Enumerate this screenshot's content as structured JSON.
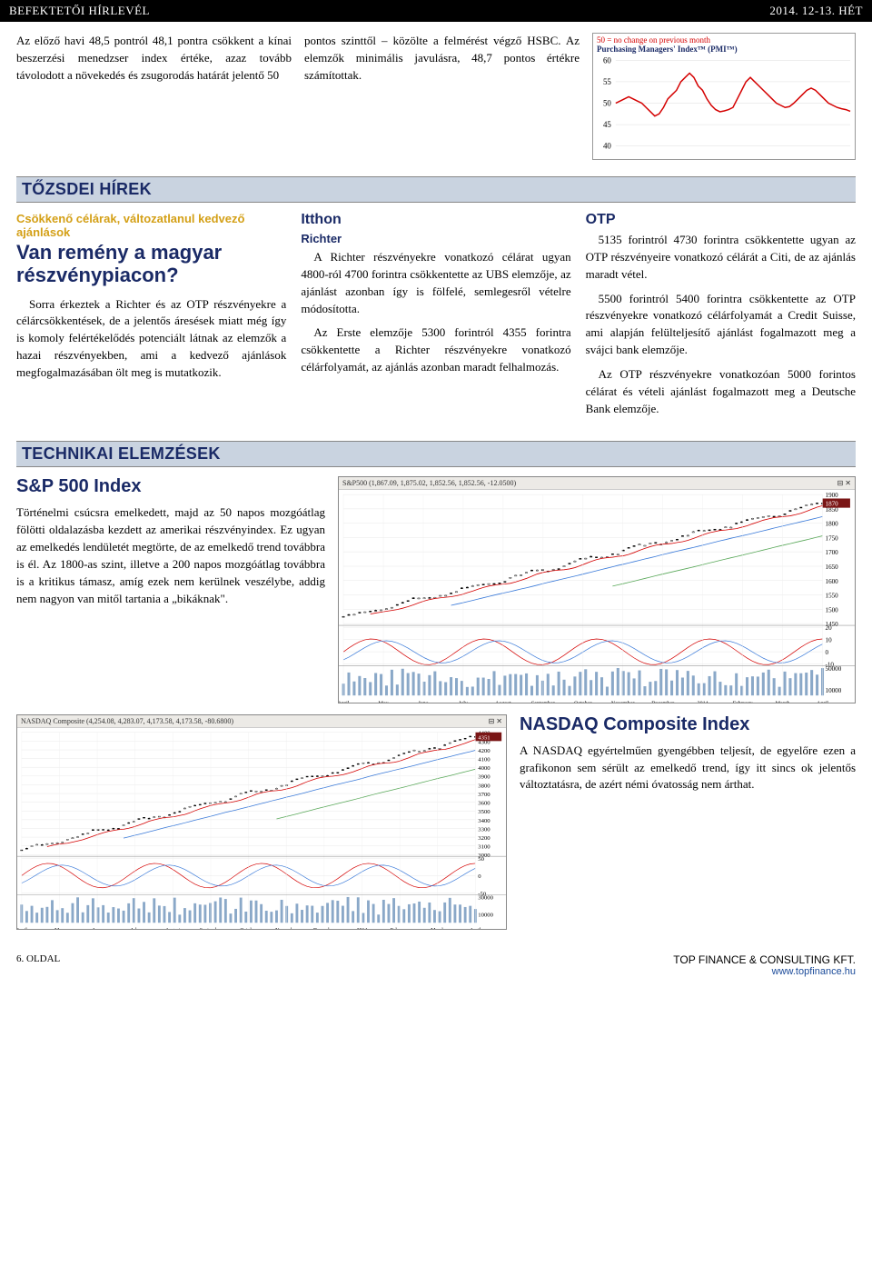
{
  "header": {
    "left": "BEFEKTETŐI HÍRLEVÉL",
    "right": "2014. 12-13. HÉT"
  },
  "intro": {
    "col1": "Az előző havi 48,5 pontról 48,1 pontra csökkent a kínai beszerzési menedzser index értéke, azaz tovább távolodott a növekedés és zsugorodás határát jelentő 50",
    "col2": "pontos szinttől – közölte a felmérést végző HSBC. Az elemzők minimális javulásra, 48,7 pontos értékre számítottak."
  },
  "pmi_chart": {
    "title_red": "50 = no change on previous month",
    "title_navy": "Purchasing Managers' Index™ (PMI™)",
    "y_ticks": [
      40,
      45,
      50,
      55,
      60
    ],
    "line_color": "#d40000",
    "values": [
      50,
      50.5,
      51,
      51.5,
      51,
      50.5,
      50,
      49,
      48,
      47,
      47.5,
      49,
      51,
      52,
      53,
      55,
      56,
      57,
      56,
      54,
      53,
      51,
      49.5,
      48.5,
      48,
      48.2,
      48.5,
      49,
      51,
      53,
      55,
      56,
      55,
      54,
      53,
      52,
      51,
      50,
      49.5,
      49,
      49.2,
      50,
      51,
      52,
      53,
      53.5,
      53,
      52,
      51,
      50,
      49.5,
      49,
      48.7,
      48.5,
      48.1
    ]
  },
  "tozsdei": {
    "section": "TŐZSDEI HÍREK",
    "col1": {
      "yellow": "Csökkenő célárak, változatlanul kedvező ajánlások",
      "title": "Van remény a magyar részvénypiacon?",
      "p": "Sorra érkeztek a Richter és az OTP részvényekre a célárcsökkentések, de a jelentős áresések miatt még így is komoly felértékelődés potenciált látnak az elemzők a hazai részvényekben, ami a kedvező ajánlások megfogalmazásában ölt meg is mutatkozik."
    },
    "col2": {
      "h1": "Itthon",
      "h2": "Richter",
      "p1": "A Richter részvényekre vonatkozó célárat ugyan 4800-ról 4700 forintra csökkentette az UBS elemzője, az ajánlást azonban így is fölfelé, semlegesről vételre módosította.",
      "p2": "Az Erste elemzője 5300 forintról 4355 forintra csökkentette a Richter részvényekre vonatkozó célárfolyamát, az ajánlás azonban maradt felhalmozás."
    },
    "col3": {
      "h1": "OTP",
      "p1": "5135 forintról 4730 forintra csökkentette ugyan az OTP részvényeire vonatkozó célárát a Citi, de az ajánlás maradt vétel.",
      "p2": "5500 forintról 5400 forintra csökkentette az OTP részvényekre vonatkozó célárfolyamát a Credit Suisse, ami alapján felülteljesítő ajánlást fogalmazott meg a svájci bank elemzője.",
      "p3": "Az OTP részvényekre vonatkozóan 5000 forintos célárat és vételi ajánlást fogalmazott meg a Deutsche Bank elemzője."
    }
  },
  "tech": {
    "section": "TECHNIKAI ELEMZÉSEK",
    "sp500": {
      "title": "S&P 500 Index",
      "p": "Történelmi csúcsra emelkedett, majd az 50 napos mozgóátlag fölötti oldalazásba kezdett az amerikai részvényindex. Ez ugyan az emelkedés lendületét megtörte, de az emelkedő trend továbbra is él. Az 1800-as szint, illetve a 200 napos mozgóátlag továbbra is a kritikus támasz, amíg ezek nem kerülnek veszélybe, addig nem nagyon van mitől tartania a „bikáknak\".",
      "chart_label": "S&P500 (1,867.09, 1,875.02, 1,852.56, 1,852.56, -12.0500)",
      "y_ticks": [
        1450,
        1500,
        1550,
        1600,
        1650,
        1700,
        1750,
        1800,
        1850,
        1900
      ],
      "osc_ticks": [
        -10,
        0,
        10,
        20
      ],
      "vol_ticks": [
        10000,
        50000
      ],
      "months": [
        "April",
        "May",
        "June",
        "July",
        "August",
        "September",
        "October",
        "November",
        "December",
        "2014",
        "February",
        "March",
        "April"
      ],
      "candle_color": "#000000",
      "ma_colors": [
        "#d40000",
        "#3a7ad9",
        "#59a859"
      ]
    },
    "nasdaq": {
      "title": "NASDAQ Composite Index",
      "p": "A NASDAQ egyértelműen gyengébben teljesít, de egyelőre ezen a grafikonon sem sérült az emelkedő trend, így itt sincs ok jelentős változtatásra, de azért némi óvatosság nem árthat.",
      "chart_label": "NASDAQ Composite (4,254.08, 4,283.07, 4,173.58, 4,173.58, -80.6800)",
      "y_ticks": [
        3000,
        3100,
        3200,
        3300,
        3400,
        3500,
        3600,
        3700,
        3800,
        3900,
        4000,
        4100,
        4200,
        4300,
        4400
      ],
      "osc_ticks": [
        -50,
        0,
        50
      ],
      "vol_ticks": [
        10000,
        30000
      ],
      "months": [
        "April",
        "May",
        "June",
        "July",
        "August",
        "September",
        "October",
        "November",
        "December",
        "2014",
        "February",
        "March",
        "April"
      ]
    }
  },
  "footer": {
    "page": "6. OLDAL",
    "company": "TOP FINANCE & CONSULTING KFT.",
    "url": "www.topfinance.hu"
  },
  "colors": {
    "navy": "#1a2a66",
    "section_bg": "#c9d3e0",
    "red": "#d40000"
  }
}
